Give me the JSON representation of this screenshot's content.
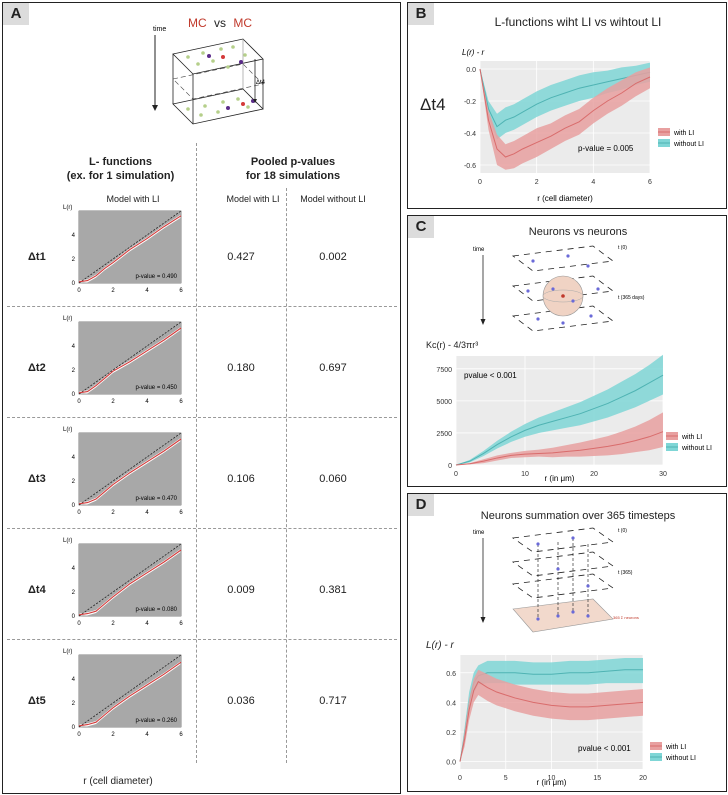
{
  "panelA": {
    "label": "A",
    "schematic": {
      "time_label": "time",
      "mc1": "MC",
      "vs": "vs",
      "mc2": "MC",
      "dt_label": "Δt4"
    },
    "col1_header": "L- functions\n(ex. for 1 simulation)",
    "col2_header": "Pooled p-values\nfor 18 simulations",
    "sub_model_li": "Model with LI",
    "sub_model_li2": "Model with LI",
    "sub_model_noli": "Model without LI",
    "y_axis_label": "L(r)",
    "x_axis_label": "r (cell diameter)",
    "rows": [
      {
        "label": "Δt1",
        "pvalue_text": "p-value = 0.490",
        "with_li": "0.427",
        "without_li": "0.002"
      },
      {
        "label": "Δt2",
        "pvalue_text": "p-value = 0.450",
        "with_li": "0.180",
        "without_li": "0.697"
      },
      {
        "label": "Δt3",
        "pvalue_text": "p-value = 0.470",
        "with_li": "0.106",
        "without_li": "0.060"
      },
      {
        "label": "Δt4",
        "pvalue_text": "p-value = 0.080",
        "with_li": "0.009",
        "without_li": "0.381"
      },
      {
        "label": "Δt5",
        "pvalue_text": "p-value = 0.260",
        "with_li": "0.036",
        "without_li": "0.717"
      }
    ]
  },
  "panelB": {
    "label": "B",
    "title": "L-functions wiht LI vs wihtout LI",
    "side_label": "Δt4",
    "y_label": "L(r) - r",
    "x_label": "r (cell diameter)",
    "pvalue": "p-value = 0.005",
    "legend": [
      "with LI",
      "without LI"
    ]
  },
  "panelC": {
    "label": "C",
    "title": "Neurons vs neurons",
    "time_label": "time",
    "t0": "t (0)",
    "t365": "t (365 days)",
    "y_label": "Kc(r) - 4/3πr³",
    "x_label": "r (in μm)",
    "pvalue": "pvalue < 0.001",
    "legend": [
      "with LI",
      "without LI"
    ]
  },
  "panelD": {
    "label": "D",
    "title": "Neurons summation over 365 timesteps",
    "time_label": "time",
    "t0": "t (0)",
    "t365": "t (365)",
    "sum_label": "365 Σ neurons",
    "y_label": "L(r) - r",
    "x_label": "r (in μm)",
    "pvalue": "pvalue < 0.001",
    "legend": [
      "with LI",
      "without LI"
    ]
  },
  "colors": {
    "red": "#e8a0a0",
    "red_line": "#d96c6c",
    "teal": "#7fd6d6",
    "teal_line": "#4fb3b3",
    "grey": "#a8a8a8"
  },
  "chart_data": [
    {
      "type": "line",
      "panel": "B",
      "title": "L-functions wiht LI vs wihtout LI",
      "xlabel": "r (cell diameter)",
      "ylabel": "L(r) - r",
      "xlim": [
        0,
        6
      ],
      "ylim": [
        -0.65,
        0.05
      ],
      "x": [
        0,
        0.3,
        0.6,
        0.9,
        1.2,
        1.5,
        2,
        2.5,
        3,
        3.5,
        4,
        4.5,
        5,
        5.5,
        6
      ],
      "series": [
        {
          "name": "with LI",
          "values": [
            0,
            -0.32,
            -0.5,
            -0.55,
            -0.53,
            -0.5,
            -0.46,
            -0.42,
            -0.37,
            -0.33,
            -0.26,
            -0.2,
            -0.15,
            -0.09,
            -0.05
          ],
          "lower": [
            0,
            -0.38,
            -0.6,
            -0.63,
            -0.62,
            -0.59,
            -0.55,
            -0.5,
            -0.45,
            -0.41,
            -0.34,
            -0.28,
            -0.23,
            -0.17,
            -0.12
          ],
          "upper": [
            0,
            -0.26,
            -0.41,
            -0.47,
            -0.45,
            -0.42,
            -0.37,
            -0.34,
            -0.29,
            -0.25,
            -0.18,
            -0.12,
            -0.07,
            -0.02,
            0.01
          ]
        },
        {
          "name": "without LI",
          "values": [
            0,
            -0.25,
            -0.36,
            -0.32,
            -0.3,
            -0.27,
            -0.22,
            -0.18,
            -0.15,
            -0.12,
            -0.1,
            -0.08,
            -0.06,
            -0.04,
            -0.02
          ],
          "lower": [
            0,
            -0.3,
            -0.44,
            -0.4,
            -0.38,
            -0.35,
            -0.3,
            -0.26,
            -0.23,
            -0.2,
            -0.18,
            -0.15,
            -0.13,
            -0.1,
            -0.08
          ],
          "upper": [
            0,
            -0.2,
            -0.28,
            -0.24,
            -0.22,
            -0.19,
            -0.14,
            -0.1,
            -0.07,
            -0.04,
            -0.02,
            -0.01,
            0.01,
            0.02,
            0.04
          ]
        }
      ]
    },
    {
      "type": "line",
      "panel": "C",
      "title": "Neurons vs neurons",
      "xlabel": "r (in μm)",
      "ylabel": "Kc(r) - 4/3πr³",
      "xlim": [
        0,
        30
      ],
      "ylim": [
        0,
        8500
      ],
      "x": [
        0,
        2,
        4,
        6,
        8,
        10,
        12,
        14,
        16,
        18,
        20,
        22,
        24,
        26,
        28,
        30
      ],
      "series": [
        {
          "name": "with LI",
          "values": [
            0,
            100,
            300,
            550,
            750,
            850,
            900,
            950,
            1050,
            1150,
            1300,
            1450,
            1650,
            1900,
            2200,
            2600
          ],
          "lower": [
            0,
            50,
            150,
            350,
            550,
            600,
            650,
            600,
            650,
            650,
            700,
            750,
            850,
            1000,
            1150,
            1400
          ],
          "upper": [
            0,
            150,
            450,
            750,
            950,
            1100,
            1200,
            1350,
            1550,
            1750,
            2000,
            2250,
            2600,
            3000,
            3500,
            4100
          ]
        },
        {
          "name": "without LI",
          "values": [
            0,
            300,
            900,
            1600,
            2200,
            2700,
            3100,
            3400,
            3700,
            4000,
            4400,
            4800,
            5300,
            5800,
            6400,
            7000
          ],
          "lower": [
            0,
            200,
            700,
            1300,
            1800,
            2200,
            2500,
            2700,
            2900,
            3100,
            3400,
            3700,
            4100,
            4500,
            5000,
            5500
          ],
          "upper": [
            0,
            400,
            1100,
            1900,
            2600,
            3200,
            3700,
            4100,
            4500,
            4900,
            5400,
            5900,
            6500,
            7100,
            7800,
            8600
          ]
        }
      ]
    },
    {
      "type": "line",
      "panel": "D",
      "title": "Neurons summation over 365 timesteps",
      "xlabel": "r (in μm)",
      "ylabel": "L(r) - r",
      "xlim": [
        0,
        20
      ],
      "ylim": [
        -0.05,
        0.72
      ],
      "x": [
        0,
        0.5,
        1,
        1.5,
        2,
        3,
        4,
        5,
        6,
        8,
        10,
        12,
        14,
        16,
        18,
        20
      ],
      "series": [
        {
          "name": "with LI",
          "values": [
            0,
            0.15,
            0.35,
            0.48,
            0.54,
            0.5,
            0.47,
            0.45,
            0.43,
            0.4,
            0.38,
            0.37,
            0.37,
            0.38,
            0.39,
            0.4
          ],
          "lower": [
            0,
            0.1,
            0.28,
            0.4,
            0.45,
            0.41,
            0.38,
            0.36,
            0.34,
            0.31,
            0.29,
            0.28,
            0.28,
            0.29,
            0.3,
            0.31
          ],
          "upper": [
            0,
            0.2,
            0.42,
            0.56,
            0.62,
            0.59,
            0.56,
            0.54,
            0.52,
            0.49,
            0.47,
            0.46,
            0.46,
            0.47,
            0.48,
            0.49
          ]
        },
        {
          "name": "without LI",
          "values": [
            0,
            0.18,
            0.4,
            0.53,
            0.58,
            0.6,
            0.6,
            0.6,
            0.6,
            0.59,
            0.59,
            0.6,
            0.6,
            0.61,
            0.62,
            0.62
          ],
          "lower": [
            0,
            0.13,
            0.33,
            0.46,
            0.52,
            0.53,
            0.53,
            0.53,
            0.52,
            0.52,
            0.52,
            0.52,
            0.52,
            0.53,
            0.53,
            0.53
          ],
          "upper": [
            0,
            0.23,
            0.47,
            0.6,
            0.65,
            0.68,
            0.68,
            0.68,
            0.68,
            0.67,
            0.67,
            0.68,
            0.68,
            0.69,
            0.7,
            0.7
          ]
        }
      ]
    },
    {
      "type": "line",
      "panel": "A",
      "xlabel": "r (cell diameter)",
      "ylabel": "L(r)",
      "xlim": [
        0,
        6
      ],
      "ylim": [
        0,
        6
      ],
      "x": [
        0,
        0.5,
        1,
        1.5,
        2,
        3,
        4,
        5,
        6
      ],
      "series": [
        {
          "name": "Δt1",
          "values": [
            0.1,
            0.2,
            0.6,
            1.2,
            1.7,
            2.8,
            3.7,
            4.7,
            5.6
          ]
        },
        {
          "name": "Δt2",
          "values": [
            0.1,
            0.2,
            0.7,
            1.3,
            1.9,
            2.7,
            3.6,
            4.5,
            5.5
          ]
        },
        {
          "name": "Δt3",
          "values": [
            0.1,
            0.2,
            0.5,
            1.1,
            1.7,
            2.7,
            3.6,
            4.5,
            5.5
          ]
        },
        {
          "name": "Δt4",
          "values": [
            0.1,
            0.2,
            0.4,
            1.0,
            1.6,
            2.7,
            3.6,
            4.5,
            5.5
          ]
        },
        {
          "name": "Δt5",
          "values": [
            0.1,
            0.2,
            0.4,
            1.0,
            1.6,
            2.6,
            3.5,
            4.4,
            5.4
          ]
        }
      ]
    }
  ]
}
